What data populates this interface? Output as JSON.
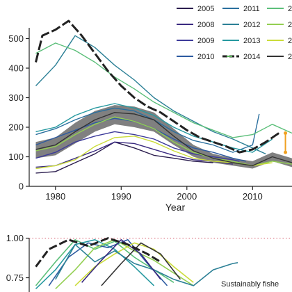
{
  "top_panel": {
    "xlabel": "Year",
    "ylabel": "",
    "xlim": [
      1976,
      2016
    ],
    "ylim": [
      0,
      560
    ],
    "xticks": [
      "1980",
      "1990",
      "2000",
      "2010"
    ],
    "yticks": [
      "0",
      "100",
      "200",
      "300",
      "400",
      "500"
    ],
    "legend": {
      "placement": "top-right",
      "entries": [
        {
          "label": "2005",
          "color": "#2b1d4e",
          "dashed": false
        },
        {
          "label": "2008",
          "color": "#3a2a80",
          "dashed": false
        },
        {
          "label": "2009",
          "color": "#3d3b9a",
          "dashed": false
        },
        {
          "label": "2010",
          "color": "#2c5aa0",
          "dashed": false
        },
        {
          "label": "2011",
          "color": "#2a6f9e",
          "dashed": false
        },
        {
          "label": "2012",
          "color": "#2c8096",
          "dashed": false
        },
        {
          "label": "2013",
          "color": "#2699a0",
          "dashed": false
        },
        {
          "label": "2014",
          "color": "#222222",
          "dashed": true,
          "marker_color": "#5cb85c"
        },
        {
          "label": "2",
          "color": "#5cbf7a",
          "dashed": false
        },
        {
          "label": "2",
          "color": "#93cf52",
          "dashed": false
        },
        {
          "label": "2",
          "color": "#cbdc3a",
          "dashed": false
        },
        {
          "label": "2",
          "color": "#333333",
          "dashed": false
        }
      ]
    }
  },
  "bottom_panel": {
    "yticks": [
      "0.75",
      "1.00"
    ],
    "ylim": [
      0.66,
      1.02
    ],
    "annotation": "Sustainably fishe",
    "reference_line_y": 1.0
  },
  "chart_data": [
    {
      "type": "line",
      "title": "",
      "xlabel": "Year",
      "ylabel": "",
      "xlim": [
        1976,
        2016
      ],
      "ylim": [
        0,
        560
      ],
      "grid": false,
      "series": [
        {
          "name": "2005",
          "color": "#2b1d4e",
          "x": [
            1977,
            1980,
            1983,
            1986,
            1989,
            1992,
            1995,
            1998,
            2001,
            2004
          ],
          "y": [
            45,
            50,
            80,
            110,
            150,
            130,
            105,
            95,
            85,
            80
          ]
        },
        {
          "name": "2008",
          "color": "#3a2a80",
          "x": [
            1977,
            1980,
            1983,
            1986,
            1989,
            1992,
            1995,
            1998,
            2001,
            2004,
            2007
          ],
          "y": [
            65,
            70,
            95,
            120,
            150,
            145,
            125,
            105,
            90,
            85,
            75
          ]
        },
        {
          "name": "2009",
          "color": "#3d3b9a",
          "x": [
            1977,
            1980,
            1983,
            1986,
            1989,
            1992,
            1995,
            1998,
            2001,
            2004,
            2007,
            2008
          ],
          "y": [
            95,
            115,
            150,
            170,
            185,
            175,
            160,
            130,
            110,
            100,
            90,
            85
          ]
        },
        {
          "name": "2010",
          "color": "#2c5aa0",
          "x": [
            1977,
            1980,
            1983,
            1986,
            1989,
            1992,
            1995,
            1998,
            2001,
            2004,
            2007,
            2009
          ],
          "y": [
            140,
            165,
            190,
            215,
            230,
            220,
            195,
            160,
            130,
            115,
            95,
            85
          ]
        },
        {
          "name": "2011",
          "color": "#2a6f9e",
          "x": [
            1977,
            1980,
            1983,
            1986,
            1989,
            1992,
            1995,
            1998,
            2001,
            2004,
            2007,
            2010,
            2011
          ],
          "y": [
            175,
            195,
            225,
            250,
            265,
            255,
            225,
            185,
            155,
            140,
            115,
            140,
            245
          ]
        },
        {
          "name": "2012",
          "color": "#2c8096",
          "x": [
            1977,
            1980,
            1983,
            1986,
            1989,
            1992,
            1995,
            1998,
            2001,
            2004,
            2007,
            2010,
            2012
          ],
          "y": [
            340,
            410,
            510,
            470,
            410,
            360,
            300,
            255,
            220,
            185,
            160,
            130,
            110
          ]
        },
        {
          "name": "2013",
          "color": "#2699a0",
          "x": [
            1977,
            1980,
            1983,
            1986,
            1989,
            1992,
            1995,
            1998,
            2001,
            2004,
            2007,
            2010,
            2013
          ],
          "y": [
            185,
            200,
            240,
            265,
            280,
            265,
            240,
            200,
            170,
            150,
            130,
            115,
            160
          ]
        },
        {
          "name": "2014",
          "color": "#222222",
          "dashed": true,
          "x": [
            1977,
            1978,
            1980,
            1982,
            1984,
            1986,
            1988,
            1990,
            1992,
            1994,
            1996,
            1998,
            2000,
            2002,
            2004,
            2006,
            2008,
            2010,
            2012,
            2014
          ],
          "y": [
            420,
            510,
            530,
            560,
            510,
            450,
            390,
            340,
            300,
            270,
            250,
            220,
            190,
            165,
            150,
            135,
            115,
            125,
            150,
            180
          ]
        },
        {
          "name": "2",
          "color": "#5cbf7a",
          "x": [
            1977,
            1980,
            1983,
            1986,
            1989,
            1992,
            1995,
            1998,
            2001,
            2004,
            2007,
            2010,
            2013,
            2016
          ],
          "y": [
            450,
            485,
            460,
            420,
            370,
            330,
            285,
            250,
            215,
            190,
            165,
            175,
            210,
            180
          ]
        },
        {
          "name": "2",
          "color": "#93cf52",
          "x": [
            1977,
            1980,
            1983,
            1986,
            1989,
            1992,
            1995,
            1998,
            2001,
            2004,
            2007,
            2010,
            2013,
            2016
          ],
          "y": [
            120,
            135,
            175,
            210,
            235,
            220,
            195,
            150,
            115,
            95,
            85,
            70,
            85,
            75
          ]
        },
        {
          "name": "2",
          "color": "#cbdc3a",
          "x": [
            1977,
            1980,
            1983,
            1986,
            1989,
            1992,
            1995,
            1998,
            2001,
            2004,
            2007,
            2010,
            2013
          ],
          "y": [
            60,
            70,
            90,
            135,
            165,
            170,
            150,
            120,
            95,
            85,
            80,
            70,
            80
          ]
        },
        {
          "name": "2",
          "color": "#333333",
          "x": [
            1977,
            1980,
            1983,
            1986,
            1989,
            1992,
            1995,
            1998,
            2001,
            2004,
            2007,
            2010,
            2013,
            2016
          ],
          "y": [
            125,
            140,
            185,
            225,
            250,
            245,
            225,
            170,
            120,
            95,
            80,
            70,
            100,
            80
          ]
        }
      ],
      "band": {
        "x": [
          1977,
          1980,
          1983,
          1986,
          1989,
          1992,
          1995,
          1998,
          2001,
          2004,
          2007,
          2010,
          2013,
          2016
        ],
        "low": [
          95,
          105,
          145,
          185,
          210,
          200,
          185,
          140,
          100,
          80,
          70,
          60,
          85,
          65
        ],
        "high": [
          150,
          165,
          215,
          255,
          275,
          270,
          250,
          195,
          140,
          110,
          95,
          85,
          115,
          95
        ]
      },
      "error_bar": {
        "x": 2015,
        "low": 115,
        "high": 180,
        "color": "#f0a020"
      }
    },
    {
      "type": "line",
      "title": "",
      "xlabel": "",
      "ylabel": "",
      "xlim": [
        1976,
        2016
      ],
      "ylim": [
        0.66,
        1.02
      ],
      "grid": false,
      "series": [
        {
          "name": "2014",
          "color": "#222222",
          "dashed": true,
          "x": [
            1977,
            1979,
            1982,
            1985,
            1988,
            1991,
            1994,
            1996
          ],
          "y": [
            0.82,
            0.93,
            0.99,
            0.95,
            1.0,
            0.96,
            0.9,
            0.85
          ]
        },
        {
          "name": "2",
          "color": "#5cbf7a",
          "x": [
            1977,
            1980,
            1983,
            1986,
            1989,
            1992,
            1995,
            1998
          ],
          "y": [
            0.7,
            0.85,
            0.99,
            0.93,
            0.98,
            0.88,
            0.8,
            0.72
          ]
        },
        {
          "name": "2013",
          "color": "#2699a0",
          "x": [
            1977,
            1980,
            1983,
            1986,
            1989,
            1992,
            1995
          ],
          "y": [
            0.68,
            0.8,
            0.96,
            0.99,
            0.93,
            0.82,
            0.7
          ]
        },
        {
          "name": "2010",
          "color": "#2c5aa0",
          "x": [
            1979,
            1982,
            1985,
            1988,
            1991,
            1994,
            1997
          ],
          "y": [
            0.7,
            0.88,
            0.97,
            0.94,
            0.99,
            0.84,
            0.7
          ]
        },
        {
          "name": "2",
          "color": "#93cf52",
          "x": [
            1980,
            1983,
            1986,
            1989,
            1992,
            1995,
            1998,
            2001
          ],
          "y": [
            0.68,
            0.8,
            0.94,
            0.99,
            0.92,
            0.86,
            0.78,
            0.7
          ]
        },
        {
          "name": "2",
          "color": "#cbdc3a",
          "x": [
            1983,
            1986,
            1989,
            1992,
            1995,
            1998,
            2001
          ],
          "y": [
            0.7,
            0.82,
            0.9,
            0.97,
            0.93,
            0.82,
            0.72
          ]
        },
        {
          "name": "2012",
          "color": "#2c8096",
          "x": [
            1980,
            1983,
            1986,
            1989,
            1992,
            1995,
            1998,
            2001,
            2004,
            2007,
            2010
          ],
          "y": [
            0.74,
            0.96,
            0.85,
            0.92,
            0.84,
            0.8,
            0.74,
            0.7,
            0.8,
            0.84,
            0.86
          ]
        },
        {
          "name": "2008",
          "color": "#3a2a80",
          "x": [
            1984,
            1987,
            1990,
            1993,
            1996
          ],
          "y": [
            0.72,
            0.86,
            0.99,
            0.9,
            0.74
          ]
        },
        {
          "name": "2",
          "color": "#333333",
          "x": [
            1987,
            1990,
            1993,
            1996,
            1999
          ],
          "y": [
            0.7,
            0.84,
            0.97,
            0.9,
            0.74
          ]
        }
      ]
    }
  ]
}
